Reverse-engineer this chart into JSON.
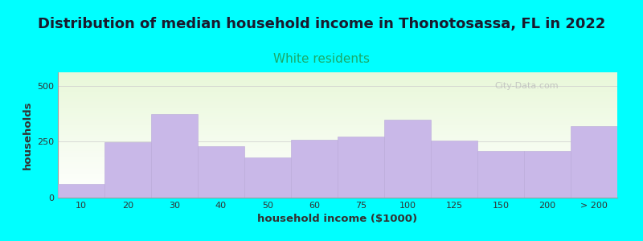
{
  "title": "Distribution of median household income in Thonotosassa, FL in 2022",
  "subtitle": "White residents",
  "xlabel": "household income ($1000)",
  "ylabel": "households",
  "background_outer": "#00FFFF",
  "bar_color": "#c9b8e8",
  "bar_edge_color": "#b8a8d8",
  "categories": [
    "10",
    "20",
    "30",
    "40",
    "50",
    "60",
    "75",
    "100",
    "125",
    "150",
    "200",
    "> 200"
  ],
  "values": [
    60,
    248,
    375,
    230,
    178,
    258,
    272,
    350,
    255,
    210,
    210,
    320
  ],
  "ylim": [
    0,
    560
  ],
  "yticks": [
    0,
    250,
    500
  ],
  "title_fontsize": 13,
  "subtitle_fontsize": 11,
  "subtitle_color": "#1aaa6a",
  "watermark": "City-Data.com"
}
